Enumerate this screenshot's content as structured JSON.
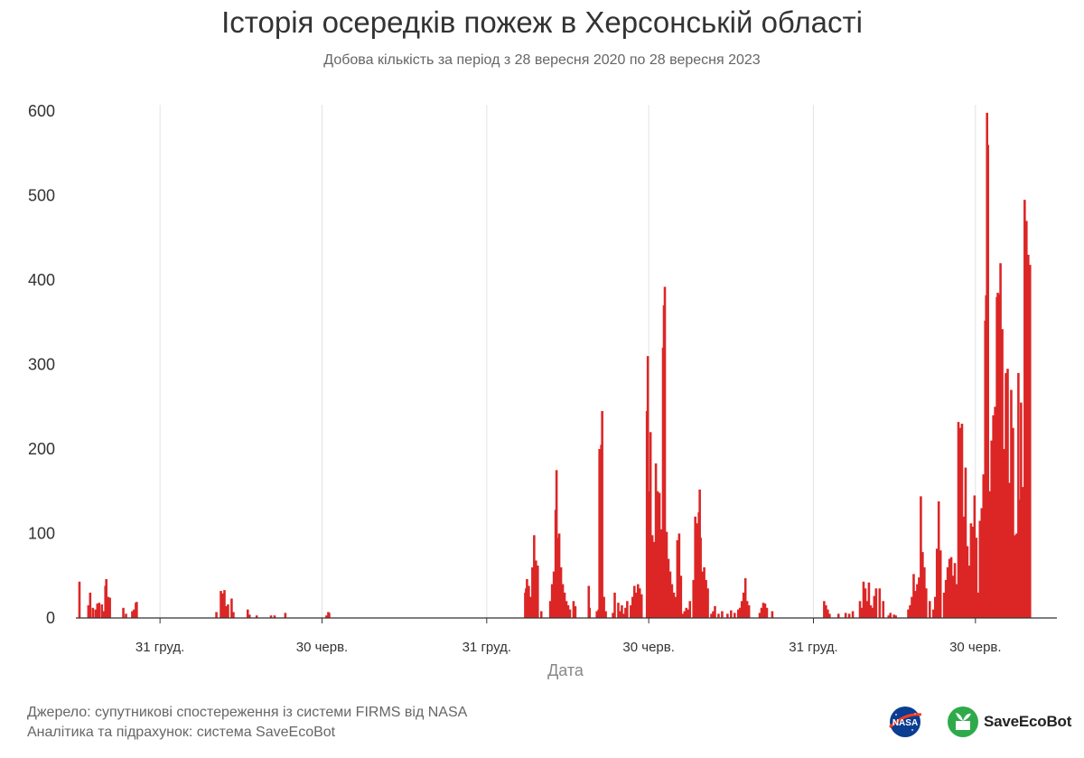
{
  "chart_data": {
    "type": "bar",
    "title": "Історія осередків пожеж в Херсонській області",
    "subtitle": "Добова кількість за період з 28 вересня 2020 по 28 вересня 2023",
    "xlabel": "Дата",
    "ylabel": "",
    "ylim": [
      0,
      600
    ],
    "y_ticks": [
      "0",
      "100",
      "200",
      "300",
      "400",
      "500",
      "600"
    ],
    "x_ticks": [
      {
        "day": 94,
        "label": "31 груд."
      },
      {
        "day": 275,
        "label": "30 черв."
      },
      {
        "day": 459,
        "label": "31 груд."
      },
      {
        "day": 640,
        "label": "30 черв."
      },
      {
        "day": 824,
        "label": "31 груд."
      },
      {
        "day": 1005,
        "label": "30 черв."
      }
    ],
    "x_domain_days": [
      0,
      1096
    ],
    "color": "#dc2626",
    "grid": "vertical",
    "series_note": "day = days since 28.09.2020, value = daily fire count",
    "points": [
      [
        4,
        43
      ],
      [
        14,
        15
      ],
      [
        16,
        30
      ],
      [
        19,
        12
      ],
      [
        22,
        10
      ],
      [
        24,
        17
      ],
      [
        26,
        18
      ],
      [
        29,
        16
      ],
      [
        31,
        8
      ],
      [
        33,
        38
      ],
      [
        34,
        46
      ],
      [
        36,
        25
      ],
      [
        38,
        24
      ],
      [
        53,
        12
      ],
      [
        56,
        5
      ],
      [
        63,
        8
      ],
      [
        65,
        10
      ],
      [
        67,
        18
      ],
      [
        68,
        19
      ],
      [
        157,
        7
      ],
      [
        162,
        32
      ],
      [
        164,
        29
      ],
      [
        166,
        33
      ],
      [
        168,
        14
      ],
      [
        170,
        16
      ],
      [
        174,
        23
      ],
      [
        176,
        7
      ],
      [
        192,
        10
      ],
      [
        194,
        4
      ],
      [
        202,
        3
      ],
      [
        218,
        3
      ],
      [
        222,
        3
      ],
      [
        234,
        6
      ],
      [
        280,
        3
      ],
      [
        282,
        7
      ],
      [
        283,
        6
      ],
      [
        502,
        30
      ],
      [
        503,
        35
      ],
      [
        504,
        46
      ],
      [
        506,
        38
      ],
      [
        508,
        25
      ],
      [
        510,
        60
      ],
      [
        512,
        98
      ],
      [
        513,
        30
      ],
      [
        514,
        68
      ],
      [
        516,
        62
      ],
      [
        520,
        8
      ],
      [
        530,
        20
      ],
      [
        532,
        40
      ],
      [
        534,
        55
      ],
      [
        536,
        128
      ],
      [
        537,
        175
      ],
      [
        538,
        95
      ],
      [
        540,
        100
      ],
      [
        542,
        60
      ],
      [
        544,
        40
      ],
      [
        546,
        30
      ],
      [
        548,
        20
      ],
      [
        550,
        15
      ],
      [
        552,
        10
      ],
      [
        556,
        20
      ],
      [
        558,
        14
      ],
      [
        573,
        38
      ],
      [
        574,
        12
      ],
      [
        582,
        8
      ],
      [
        584,
        10
      ],
      [
        585,
        200
      ],
      [
        587,
        205
      ],
      [
        588,
        245
      ],
      [
        590,
        25
      ],
      [
        592,
        8
      ],
      [
        600,
        6
      ],
      [
        602,
        30
      ],
      [
        606,
        18
      ],
      [
        608,
        8
      ],
      [
        610,
        15
      ],
      [
        612,
        5
      ],
      [
        614,
        12
      ],
      [
        616,
        20
      ],
      [
        620,
        15
      ],
      [
        622,
        25
      ],
      [
        624,
        38
      ],
      [
        626,
        30
      ],
      [
        628,
        40
      ],
      [
        630,
        35
      ],
      [
        632,
        28
      ],
      [
        638,
        245
      ],
      [
        639,
        310
      ],
      [
        640,
        150
      ],
      [
        642,
        220
      ],
      [
        644,
        98
      ],
      [
        646,
        90
      ],
      [
        648,
        183
      ],
      [
        650,
        150
      ],
      [
        652,
        148
      ],
      [
        654,
        105
      ],
      [
        656,
        320
      ],
      [
        657,
        370
      ],
      [
        658,
        392
      ],
      [
        660,
        102
      ],
      [
        662,
        70
      ],
      [
        664,
        55
      ],
      [
        666,
        40
      ],
      [
        668,
        30
      ],
      [
        670,
        25
      ],
      [
        672,
        92
      ],
      [
        674,
        100
      ],
      [
        676,
        50
      ],
      [
        678,
        5
      ],
      [
        680,
        8
      ],
      [
        682,
        12
      ],
      [
        684,
        10
      ],
      [
        686,
        20
      ],
      [
        690,
        45
      ],
      [
        692,
        120
      ],
      [
        694,
        112
      ],
      [
        696,
        125
      ],
      [
        697,
        152
      ],
      [
        698,
        95
      ],
      [
        700,
        55
      ],
      [
        702,
        60
      ],
      [
        704,
        45
      ],
      [
        706,
        35
      ],
      [
        710,
        5
      ],
      [
        712,
        8
      ],
      [
        714,
        14
      ],
      [
        718,
        5
      ],
      [
        722,
        8
      ],
      [
        728,
        5
      ],
      [
        732,
        9
      ],
      [
        736,
        6
      ],
      [
        740,
        10
      ],
      [
        742,
        12
      ],
      [
        744,
        20
      ],
      [
        746,
        30
      ],
      [
        748,
        47
      ],
      [
        750,
        20
      ],
      [
        752,
        15
      ],
      [
        764,
        6
      ],
      [
        766,
        12
      ],
      [
        768,
        18
      ],
      [
        770,
        17
      ],
      [
        772,
        12
      ],
      [
        778,
        8
      ],
      [
        836,
        20
      ],
      [
        838,
        15
      ],
      [
        840,
        10
      ],
      [
        842,
        5
      ],
      [
        852,
        5
      ],
      [
        860,
        6
      ],
      [
        864,
        5
      ],
      [
        868,
        8
      ],
      [
        876,
        20
      ],
      [
        878,
        12
      ],
      [
        880,
        43
      ],
      [
        882,
        35
      ],
      [
        884,
        20
      ],
      [
        886,
        42
      ],
      [
        888,
        15
      ],
      [
        890,
        12
      ],
      [
        892,
        26
      ],
      [
        894,
        35
      ],
      [
        898,
        35
      ],
      [
        902,
        20
      ],
      [
        908,
        3
      ],
      [
        910,
        6
      ],
      [
        914,
        4
      ],
      [
        916,
        3
      ],
      [
        930,
        10
      ],
      [
        932,
        15
      ],
      [
        934,
        25
      ],
      [
        936,
        52
      ],
      [
        938,
        32
      ],
      [
        940,
        40
      ],
      [
        942,
        48
      ],
      [
        944,
        144
      ],
      [
        946,
        78
      ],
      [
        948,
        60
      ],
      [
        950,
        35
      ],
      [
        954,
        20
      ],
      [
        958,
        10
      ],
      [
        960,
        25
      ],
      [
        962,
        82
      ],
      [
        964,
        138
      ],
      [
        966,
        80
      ],
      [
        970,
        30
      ],
      [
        972,
        45
      ],
      [
        974,
        60
      ],
      [
        976,
        70
      ],
      [
        978,
        72
      ],
      [
        980,
        50
      ],
      [
        982,
        65
      ],
      [
        984,
        40
      ],
      [
        986,
        232
      ],
      [
        988,
        225
      ],
      [
        990,
        230
      ],
      [
        992,
        120
      ],
      [
        994,
        178
      ],
      [
        996,
        85
      ],
      [
        998,
        62
      ],
      [
        1000,
        112
      ],
      [
        1002,
        108
      ],
      [
        1004,
        145
      ],
      [
        1006,
        95
      ],
      [
        1008,
        30
      ],
      [
        1010,
        115
      ],
      [
        1012,
        130
      ],
      [
        1014,
        170
      ],
      [
        1016,
        352
      ],
      [
        1017,
        382
      ],
      [
        1018,
        598
      ],
      [
        1019,
        560
      ],
      [
        1021,
        150
      ],
      [
        1023,
        210
      ],
      [
        1025,
        240
      ],
      [
        1027,
        250
      ],
      [
        1029,
        380
      ],
      [
        1030,
        385
      ],
      [
        1031,
        383
      ],
      [
        1033,
        420
      ],
      [
        1035,
        342
      ],
      [
        1037,
        200
      ],
      [
        1039,
        290
      ],
      [
        1041,
        295
      ],
      [
        1043,
        160
      ],
      [
        1045,
        270
      ],
      [
        1047,
        225
      ],
      [
        1049,
        98
      ],
      [
        1051,
        100
      ],
      [
        1053,
        290
      ],
      [
        1054,
        140
      ],
      [
        1056,
        255
      ],
      [
        1058,
        155
      ],
      [
        1060,
        495
      ],
      [
        1062,
        470
      ],
      [
        1064,
        430
      ],
      [
        1066,
        418
      ]
    ]
  },
  "footer": {
    "source": "Джерело: супутникові спостереження із системи FIRMS від NASA",
    "analytics": "Аналітика та підрахунок: система SaveEcoBot"
  },
  "logos": {
    "nasa": "NASA",
    "saveecobot": "SaveEcoBot"
  }
}
